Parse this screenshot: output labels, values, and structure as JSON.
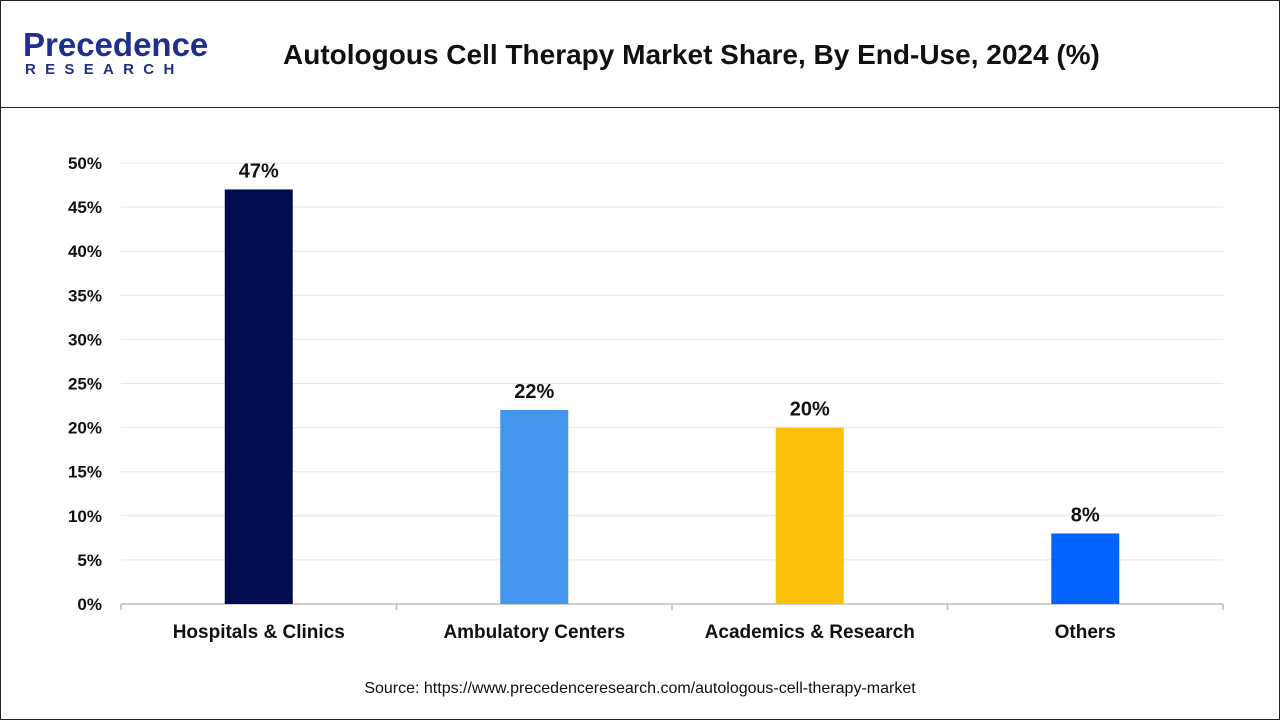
{
  "brand": {
    "name_top": "Precedence",
    "name_bottom": "RESEARCH",
    "color": "#1f2f8c"
  },
  "source": "Source: https://www.precedenceresearch.com/autologous-cell-therapy-market",
  "chart_data": {
    "type": "bar",
    "title": "Autologous Cell Therapy Market Share, By End-Use, 2024 (%)",
    "categories": [
      "Hospitals & Clinics",
      "Ambulatory Centers",
      "Academics & Research",
      "Others"
    ],
    "values": [
      47,
      22,
      20,
      8
    ],
    "data_labels": [
      "47%",
      "22%",
      "20%",
      "8%"
    ],
    "colors": [
      "#000a4f",
      "#4595ee",
      "#fcc10a",
      "#0063fb"
    ],
    "ylim": [
      0,
      50
    ],
    "yticks": [
      0,
      5,
      10,
      15,
      20,
      25,
      30,
      35,
      40,
      45,
      50
    ],
    "ytick_labels": [
      "0%",
      "5%",
      "10%",
      "15%",
      "20%",
      "25%",
      "30%",
      "35%",
      "40%",
      "45%",
      "50%"
    ],
    "xlabel": "",
    "ylabel": "",
    "grid": true,
    "legend": "none"
  }
}
